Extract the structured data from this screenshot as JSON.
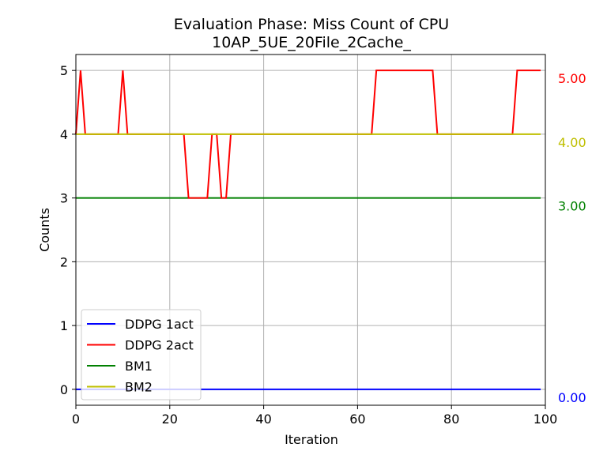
{
  "chart_data": {
    "type": "line",
    "title": "Evaluation Phase: Miss Count of CPU",
    "subtitle": "10AP_5UE_20File_2Cache_",
    "xlabel": "Iteration",
    "ylabel": "Counts",
    "xlim": [
      0,
      100
    ],
    "ylim": [
      -0.25,
      5.25
    ],
    "xticks": [
      0,
      20,
      40,
      60,
      80,
      100
    ],
    "yticks": [
      0,
      1,
      2,
      3,
      4,
      5
    ],
    "grid": true,
    "legend_position": "lower-left",
    "series": [
      {
        "name": "DDPG 1act",
        "color": "#0000ff",
        "x": [
          0,
          99
        ],
        "y": [
          0,
          0
        ],
        "annotation": "0.00"
      },
      {
        "name": "DDPG 2act",
        "color": "#ff0000",
        "x": [
          0,
          1,
          2,
          9,
          10,
          11,
          23,
          24,
          28,
          29,
          30,
          31,
          32,
          33,
          63,
          64,
          76,
          77,
          93,
          94,
          99
        ],
        "y": [
          4,
          5,
          4,
          4,
          5,
          4,
          4,
          3,
          3,
          4,
          4,
          3,
          3,
          4,
          4,
          5,
          5,
          4,
          4,
          5,
          5
        ],
        "annotation": "5.00"
      },
      {
        "name": "BM1",
        "color": "#008000",
        "x": [
          0,
          99
        ],
        "y": [
          3,
          3
        ],
        "annotation": "3.00"
      },
      {
        "name": "BM2",
        "color": "#bfbf00",
        "x": [
          0,
          99
        ],
        "y": [
          4,
          4
        ],
        "annotation": "4.00"
      }
    ]
  }
}
